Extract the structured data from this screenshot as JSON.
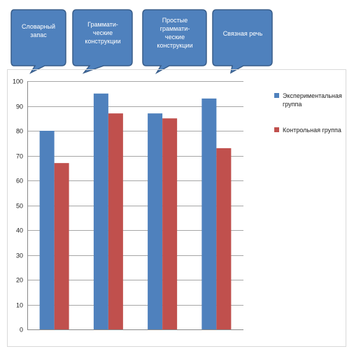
{
  "callouts": [
    {
      "lines": [
        "Словарный",
        "запас"
      ]
    },
    {
      "lines": [
        "Граммати-",
        "ческие",
        "конструкции"
      ]
    },
    {
      "lines": [
        "Простые",
        "граммати-",
        "ческие",
        "конструкции"
      ]
    },
    {
      "lines": [
        "Связная речь"
      ]
    }
  ],
  "colors": {
    "callout_fill": "#4f81bd",
    "callout_stroke": "#385d8a",
    "experimental": "#4f81bd",
    "control": "#c0504d",
    "grid": "#a6a6a6"
  },
  "legend": [
    {
      "lines": [
        "Экспериментальная",
        "группа"
      ]
    },
    {
      "lines": [
        "Контрольная  группа"
      ]
    }
  ],
  "chart_data": {
    "type": "bar",
    "categories": [
      "",
      "",
      "",
      ""
    ],
    "series": [
      {
        "name": "Экспериментальная группа",
        "values": [
          80,
          95,
          87,
          93
        ]
      },
      {
        "name": "Контрольная группа",
        "values": [
          67,
          87,
          85,
          73
        ]
      }
    ],
    "ylim": [
      0,
      100
    ],
    "yticks": [
      0,
      10,
      20,
      30,
      40,
      50,
      60,
      70,
      80,
      90,
      100
    ],
    "grid": true,
    "legend_position": "right"
  }
}
